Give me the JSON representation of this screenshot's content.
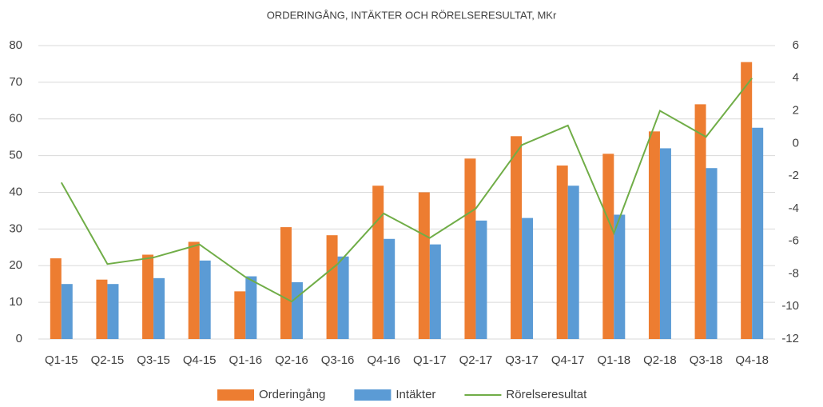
{
  "chart_data": {
    "type": "bar-line",
    "title": "ORDERINGÅNG, INTÄKTER OCH RÖRELSERESULTAT, MKr",
    "categories": [
      "Q1-15",
      "Q2-15",
      "Q3-15",
      "Q4-15",
      "Q1-16",
      "Q2-16",
      "Q3-16",
      "Q4-16",
      "Q1-17",
      "Q2-17",
      "Q3-17",
      "Q4-17",
      "Q1-18",
      "Q2-18",
      "Q3-18",
      "Q4-18"
    ],
    "series": [
      {
        "name": "Orderingång",
        "color": "#ed7d31",
        "type": "bar",
        "values": [
          22,
          16.2,
          23,
          26.5,
          13,
          30.5,
          28.3,
          41.8,
          40,
          49.2,
          55.3,
          47.3,
          50.5,
          56.6,
          64,
          75.5
        ]
      },
      {
        "name": "Intäkter",
        "color": "#5b9bd5",
        "type": "bar",
        "values": [
          15,
          15,
          16.6,
          21.4,
          17.1,
          15.5,
          22.5,
          27.3,
          25.8,
          32.3,
          33,
          41.8,
          33.9,
          52,
          46.6,
          57.6
        ]
      },
      {
        "name": "Rörelseresultat",
        "color": "#70ad47",
        "type": "line",
        "axis": "y2",
        "values": [
          -2.4,
          -7.4,
          -7.0,
          -6.2,
          -8.2,
          -9.7,
          -7.4,
          -4.3,
          -5.8,
          -4.0,
          -0.1,
          1.1,
          -5.5,
          2.0,
          0.4,
          4.0
        ]
      }
    ],
    "ylim": [
      0,
      80
    ],
    "yticks": [
      0,
      10,
      20,
      30,
      40,
      50,
      60,
      70,
      80
    ],
    "y2lim": [
      -12,
      6
    ],
    "y2ticks": [
      -12,
      -10,
      -8,
      -6,
      -4,
      -2,
      0,
      2,
      4,
      6
    ],
    "grid": true,
    "legend": "bottom"
  }
}
